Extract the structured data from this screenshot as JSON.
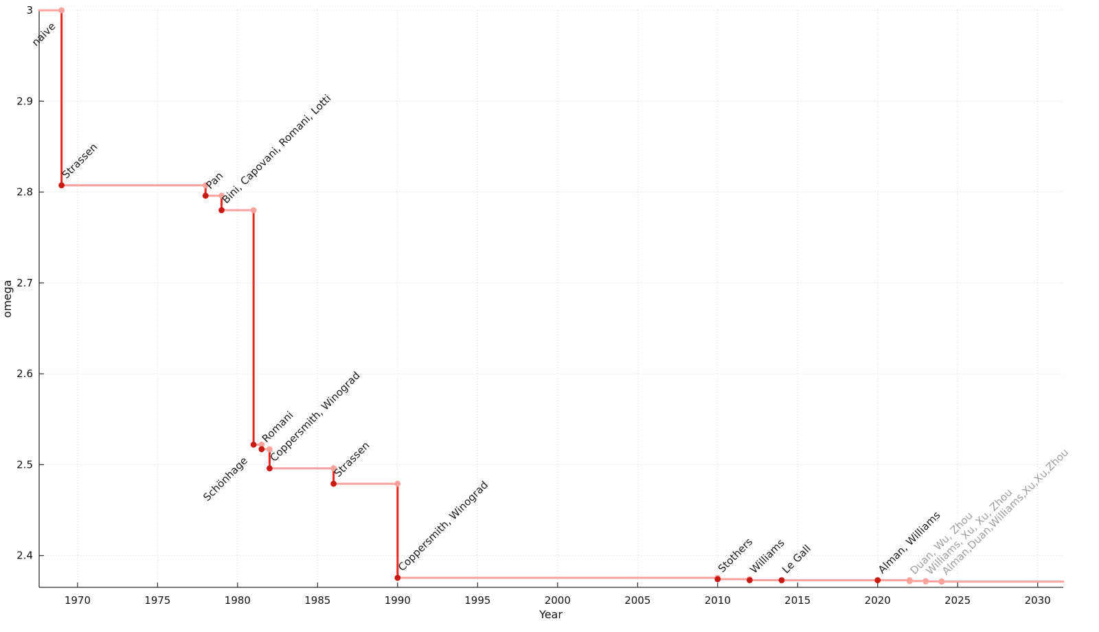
{
  "chart_data": {
    "type": "line",
    "step": true,
    "title": "",
    "xlabel": "Year",
    "ylabel": "omega",
    "xlim": [
      1967.6,
      2031.6
    ],
    "ylim": [
      2.365,
      3.0
    ],
    "x_ticks": [
      1970,
      1975,
      1980,
      1985,
      1990,
      1995,
      2000,
      2005,
      2010,
      2015,
      2020,
      2025,
      2030
    ],
    "y_ticks": [
      2.4,
      2.5,
      2.6,
      2.7,
      2.8,
      2.9,
      3
    ],
    "grid": true,
    "legend": "none",
    "colors": {
      "line_horizontal": "#f9a29d",
      "line_vertical": "#e8261d",
      "point": "#c81914",
      "point_recent": "#f8a29e",
      "label": "#1a1a1a",
      "label_recent": "#9e9e9e",
      "grid": "#d8d8d8",
      "axis": "#2b2b2b"
    },
    "events": [
      {
        "label": "naive",
        "year": 1969,
        "omega": 3.0,
        "label_pos": "below",
        "recent": false
      },
      {
        "label": "Strassen",
        "year": 1969,
        "omega": 2.8074,
        "label_pos": "above",
        "recent": false
      },
      {
        "label": "Pan",
        "year": 1978,
        "omega": 2.796,
        "label_pos": "above",
        "recent": false
      },
      {
        "label": "Bini, Capovani, Romani, Lotti",
        "year": 1979,
        "omega": 2.78,
        "label_pos": "above",
        "recent": false
      },
      {
        "label": "Schönhage",
        "year": 1981,
        "omega": 2.522,
        "label_pos": "below",
        "recent": false
      },
      {
        "label": "Romani",
        "year": 1981.5,
        "omega": 2.517,
        "label_pos": "above",
        "recent": false
      },
      {
        "label": "Coppersmith, Winograd",
        "year": 1982,
        "omega": 2.496,
        "label_pos": "above",
        "recent": false
      },
      {
        "label": "Strassen",
        "year": 1986,
        "omega": 2.479,
        "label_pos": "above",
        "recent": false
      },
      {
        "label": "Coppersmith, Winograd",
        "year": 1990,
        "omega": 2.3755,
        "label_pos": "above",
        "recent": false
      },
      {
        "label": "Stothers",
        "year": 2010,
        "omega": 2.374,
        "label_pos": "above",
        "recent": false
      },
      {
        "label": "Williams",
        "year": 2012,
        "omega": 2.3729,
        "label_pos": "above",
        "recent": false
      },
      {
        "label": "Le Gall",
        "year": 2014,
        "omega": 2.3728639,
        "label_pos": "above",
        "recent": false
      },
      {
        "label": "Alman, Williams",
        "year": 2020,
        "omega": 2.3728596,
        "label_pos": "above",
        "recent": false
      },
      {
        "label": "Duan, Wu, Zhou",
        "year": 2022,
        "omega": 2.3718867,
        "label_pos": "above",
        "recent": true
      },
      {
        "label": "Williams, Xu, Xu, Zhou",
        "year": 2023,
        "omega": 2.371552,
        "label_pos": "above",
        "recent": true
      },
      {
        "label": "Alman,Duan,Williams,Xu,Xu,Zhou",
        "year": 2024,
        "omega": 2.371339,
        "label_pos": "above",
        "recent": true
      }
    ]
  }
}
